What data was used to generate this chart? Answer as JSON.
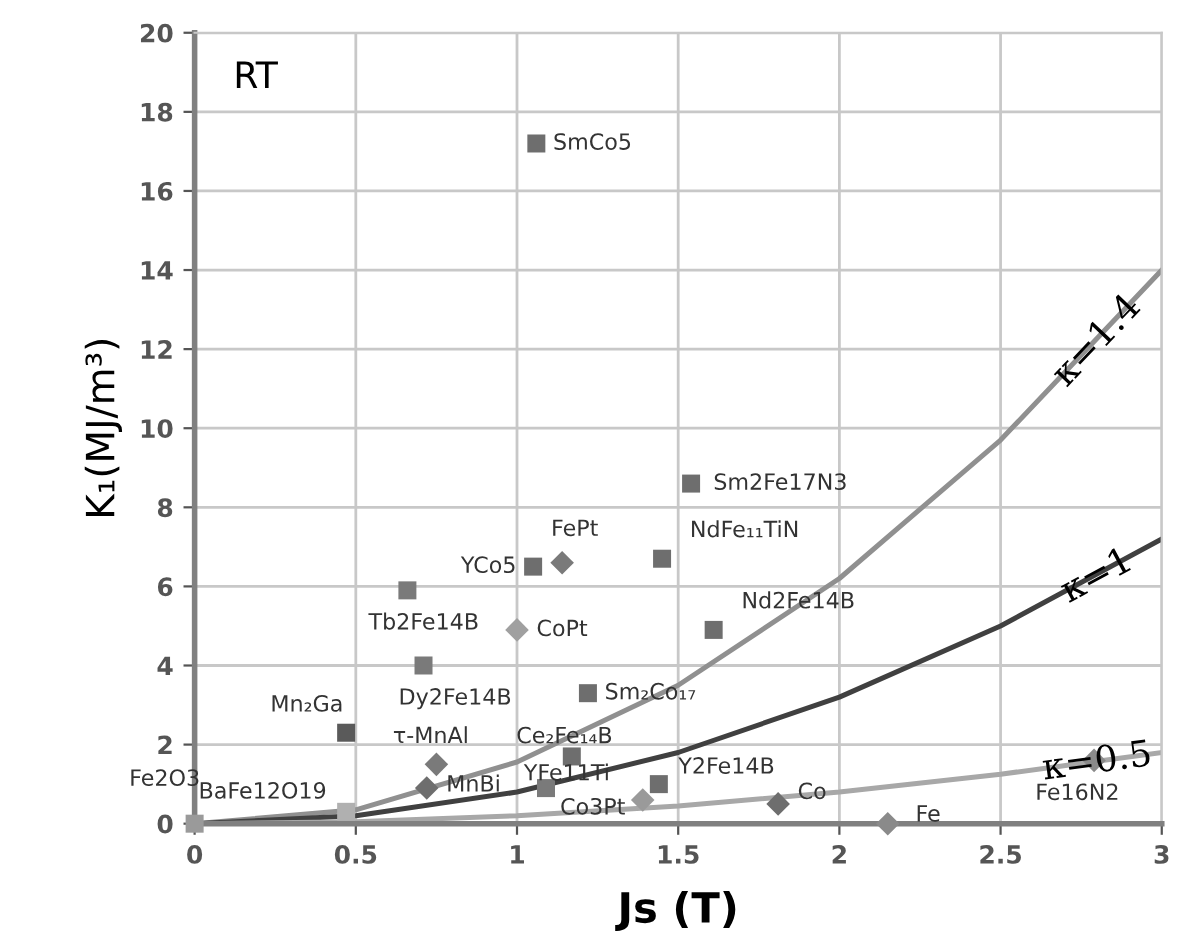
{
  "chart_data": {
    "type": "scatter",
    "xlabel": "Js (T)",
    "ylabel": "K₁(MJ/m³)",
    "xlim": [
      0,
      3
    ],
    "ylim": [
      0,
      20
    ],
    "xticks": [
      0,
      0.5,
      1,
      1.5,
      2,
      2.5,
      3
    ],
    "yticks": [
      0,
      2,
      4,
      6,
      8,
      10,
      12,
      14,
      16,
      18,
      20
    ],
    "grid": true,
    "legend": false,
    "series": [
      {
        "type": "line",
        "color": "#909090",
        "marker": "none",
        "x": [
          0,
          0.5,
          1,
          1.5,
          2,
          2.5,
          3
        ],
        "values": [
          0,
          0.35,
          1.56,
          3.5,
          6.2,
          9.7,
          14.0
        ]
      },
      {
        "type": "line",
        "color": "#404040",
        "marker": "none",
        "x": [
          0,
          0.5,
          1,
          1.5,
          2,
          2.5,
          3
        ],
        "values": [
          0,
          0.2,
          0.8,
          1.8,
          3.2,
          5.0,
          7.2
        ]
      },
      {
        "type": "line",
        "color": "#a8a8a8",
        "marker": "none",
        "x": [
          0,
          0.5,
          1,
          1.5,
          2,
          2.5,
          3
        ],
        "values": [
          0,
          0.05,
          0.2,
          0.45,
          0.8,
          1.25,
          1.8
        ]
      },
      {
        "type": "scatter",
        "marker": "square",
        "x": [
          1.06,
          1.05,
          0.66,
          0.71,
          0.47,
          0.47,
          0,
          1.09,
          1.17,
          1.22,
          1.54,
          1.45,
          1.61,
          1.44
        ],
        "values": [
          17.2,
          6.5,
          5.9,
          4.0,
          2.3,
          0.3,
          0,
          0.9,
          1.7,
          3.3,
          8.6,
          6.7,
          4.9,
          1.0
        ],
        "colors": [
          "#6e6e6e",
          "#6e6e6e",
          "#7a7a7a",
          "#7a7a7a",
          "#5a5a5a",
          "#b0b0b0",
          "#9a9a9a",
          "#7a7a7a",
          "#6e6e6e",
          "#6e6e6e",
          "#6e6e6e",
          "#6e6e6e",
          "#6e6e6e",
          "#6e6e6e"
        ]
      },
      {
        "type": "scatter",
        "marker": "diamond",
        "x": [
          1.14,
          1.0,
          0.75,
          0.72,
          1.39,
          1.81,
          2.15,
          2.79
        ],
        "values": [
          6.6,
          4.9,
          1.5,
          0.9,
          0.6,
          0.5,
          0,
          1.6
        ],
        "colors": [
          "#7a7a7a",
          "#a0a0a0",
          "#7a7a7a",
          "#6e6e6e",
          "#9a9a9a",
          "#6e6e6e",
          "#8a8a8a",
          "#8a8a8a"
        ]
      }
    ],
    "annotations": [
      "RT",
      {
        "text": "SmCo5",
        "x": 1.06,
        "y": 17.2
      },
      {
        "text": "YCo5",
        "x": 1.05,
        "y": 6.5
      },
      {
        "text": "FePt",
        "x": 1.14,
        "y": 6.6
      },
      {
        "text": "Tb2Fe14B",
        "x": 0.66,
        "y": 5.9
      },
      {
        "text": "CoPt",
        "x": 1.0,
        "y": 4.9
      },
      {
        "text": "Dy2Fe14B",
        "x": 0.71,
        "y": 4.0
      },
      {
        "text": "Mn₂Ga",
        "x": 0.47,
        "y": 2.3
      },
      {
        "text": "τ-MnAl",
        "x": 0.75,
        "y": 1.5
      },
      {
        "text": "MnBi",
        "x": 0.72,
        "y": 0.9
      },
      {
        "text": "BaFe12O19",
        "x": 0.47,
        "y": 0.3
      },
      {
        "text": "Fe2O3",
        "x": 0,
        "y": 0
      },
      {
        "text": "YFe11Ti",
        "x": 1.09,
        "y": 0.9
      },
      {
        "text": "Ce₂Fe₁₄B",
        "x": 1.17,
        "y": 1.7
      },
      {
        "text": "Sm₂Co₁₇",
        "x": 1.22,
        "y": 3.3
      },
      {
        "text": "Sm2Fe17N3",
        "x": 1.54,
        "y": 8.6
      },
      {
        "text": "NdFe₁₁TiN",
        "x": 1.45,
        "y": 6.7
      },
      {
        "text": "Nd2Fe14B",
        "x": 1.61,
        "y": 4.9
      },
      {
        "text": "Y2Fe14B",
        "x": 1.44,
        "y": 1.0
      },
      {
        "text": "Co3Pt",
        "x": 1.39,
        "y": 0.6
      },
      {
        "text": "Co",
        "x": 1.81,
        "y": 0.5
      },
      {
        "text": "Fe",
        "x": 2.15,
        "y": 0
      },
      {
        "text": "Fe16N2",
        "x": 2.79,
        "y": 1.6
      },
      {
        "text": "κ=1.4",
        "x": 2.8,
        "y": 12.2
      },
      {
        "text": "κ=1",
        "x": 2.8,
        "y": 6.25
      },
      {
        "text": "κ=0.5",
        "x": 2.8,
        "y": 1.55
      }
    ]
  }
}
